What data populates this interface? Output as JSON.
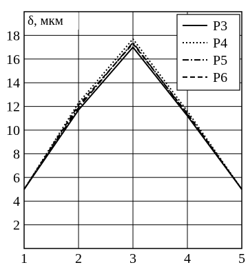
{
  "chart_data": {
    "type": "line",
    "ylabel": "δ, мкм",
    "xlim": [
      1,
      5
    ],
    "ylim": [
      0,
      20
    ],
    "xticks": [
      "1",
      "2",
      "3",
      "4",
      "5"
    ],
    "yticks": [
      "2",
      "4",
      "6",
      "8",
      "10",
      "12",
      "14",
      "16",
      "18"
    ],
    "grid": true,
    "legend_position": "top-right",
    "series": [
      {
        "name": "P3",
        "style": "solid",
        "x": [
          1,
          2,
          3,
          4,
          5
        ],
        "y": [
          5.0,
          11.7,
          17.0,
          11.2,
          5.0
        ]
      },
      {
        "name": "P4",
        "style": "dotted",
        "x": [
          1,
          2,
          3,
          4,
          5
        ],
        "y": [
          5.0,
          12.3,
          17.7,
          11.6,
          5.0
        ]
      },
      {
        "name": "P5",
        "style": "dashdot",
        "x": [
          1,
          2,
          3,
          4,
          5
        ],
        "y": [
          5.0,
          11.9,
          17.4,
          11.3,
          5.0
        ]
      },
      {
        "name": "P6",
        "style": "dashed",
        "x": [
          1,
          2,
          3,
          4,
          5
        ],
        "y": [
          5.0,
          12.1,
          17.3,
          11.4,
          5.0
        ]
      }
    ]
  }
}
